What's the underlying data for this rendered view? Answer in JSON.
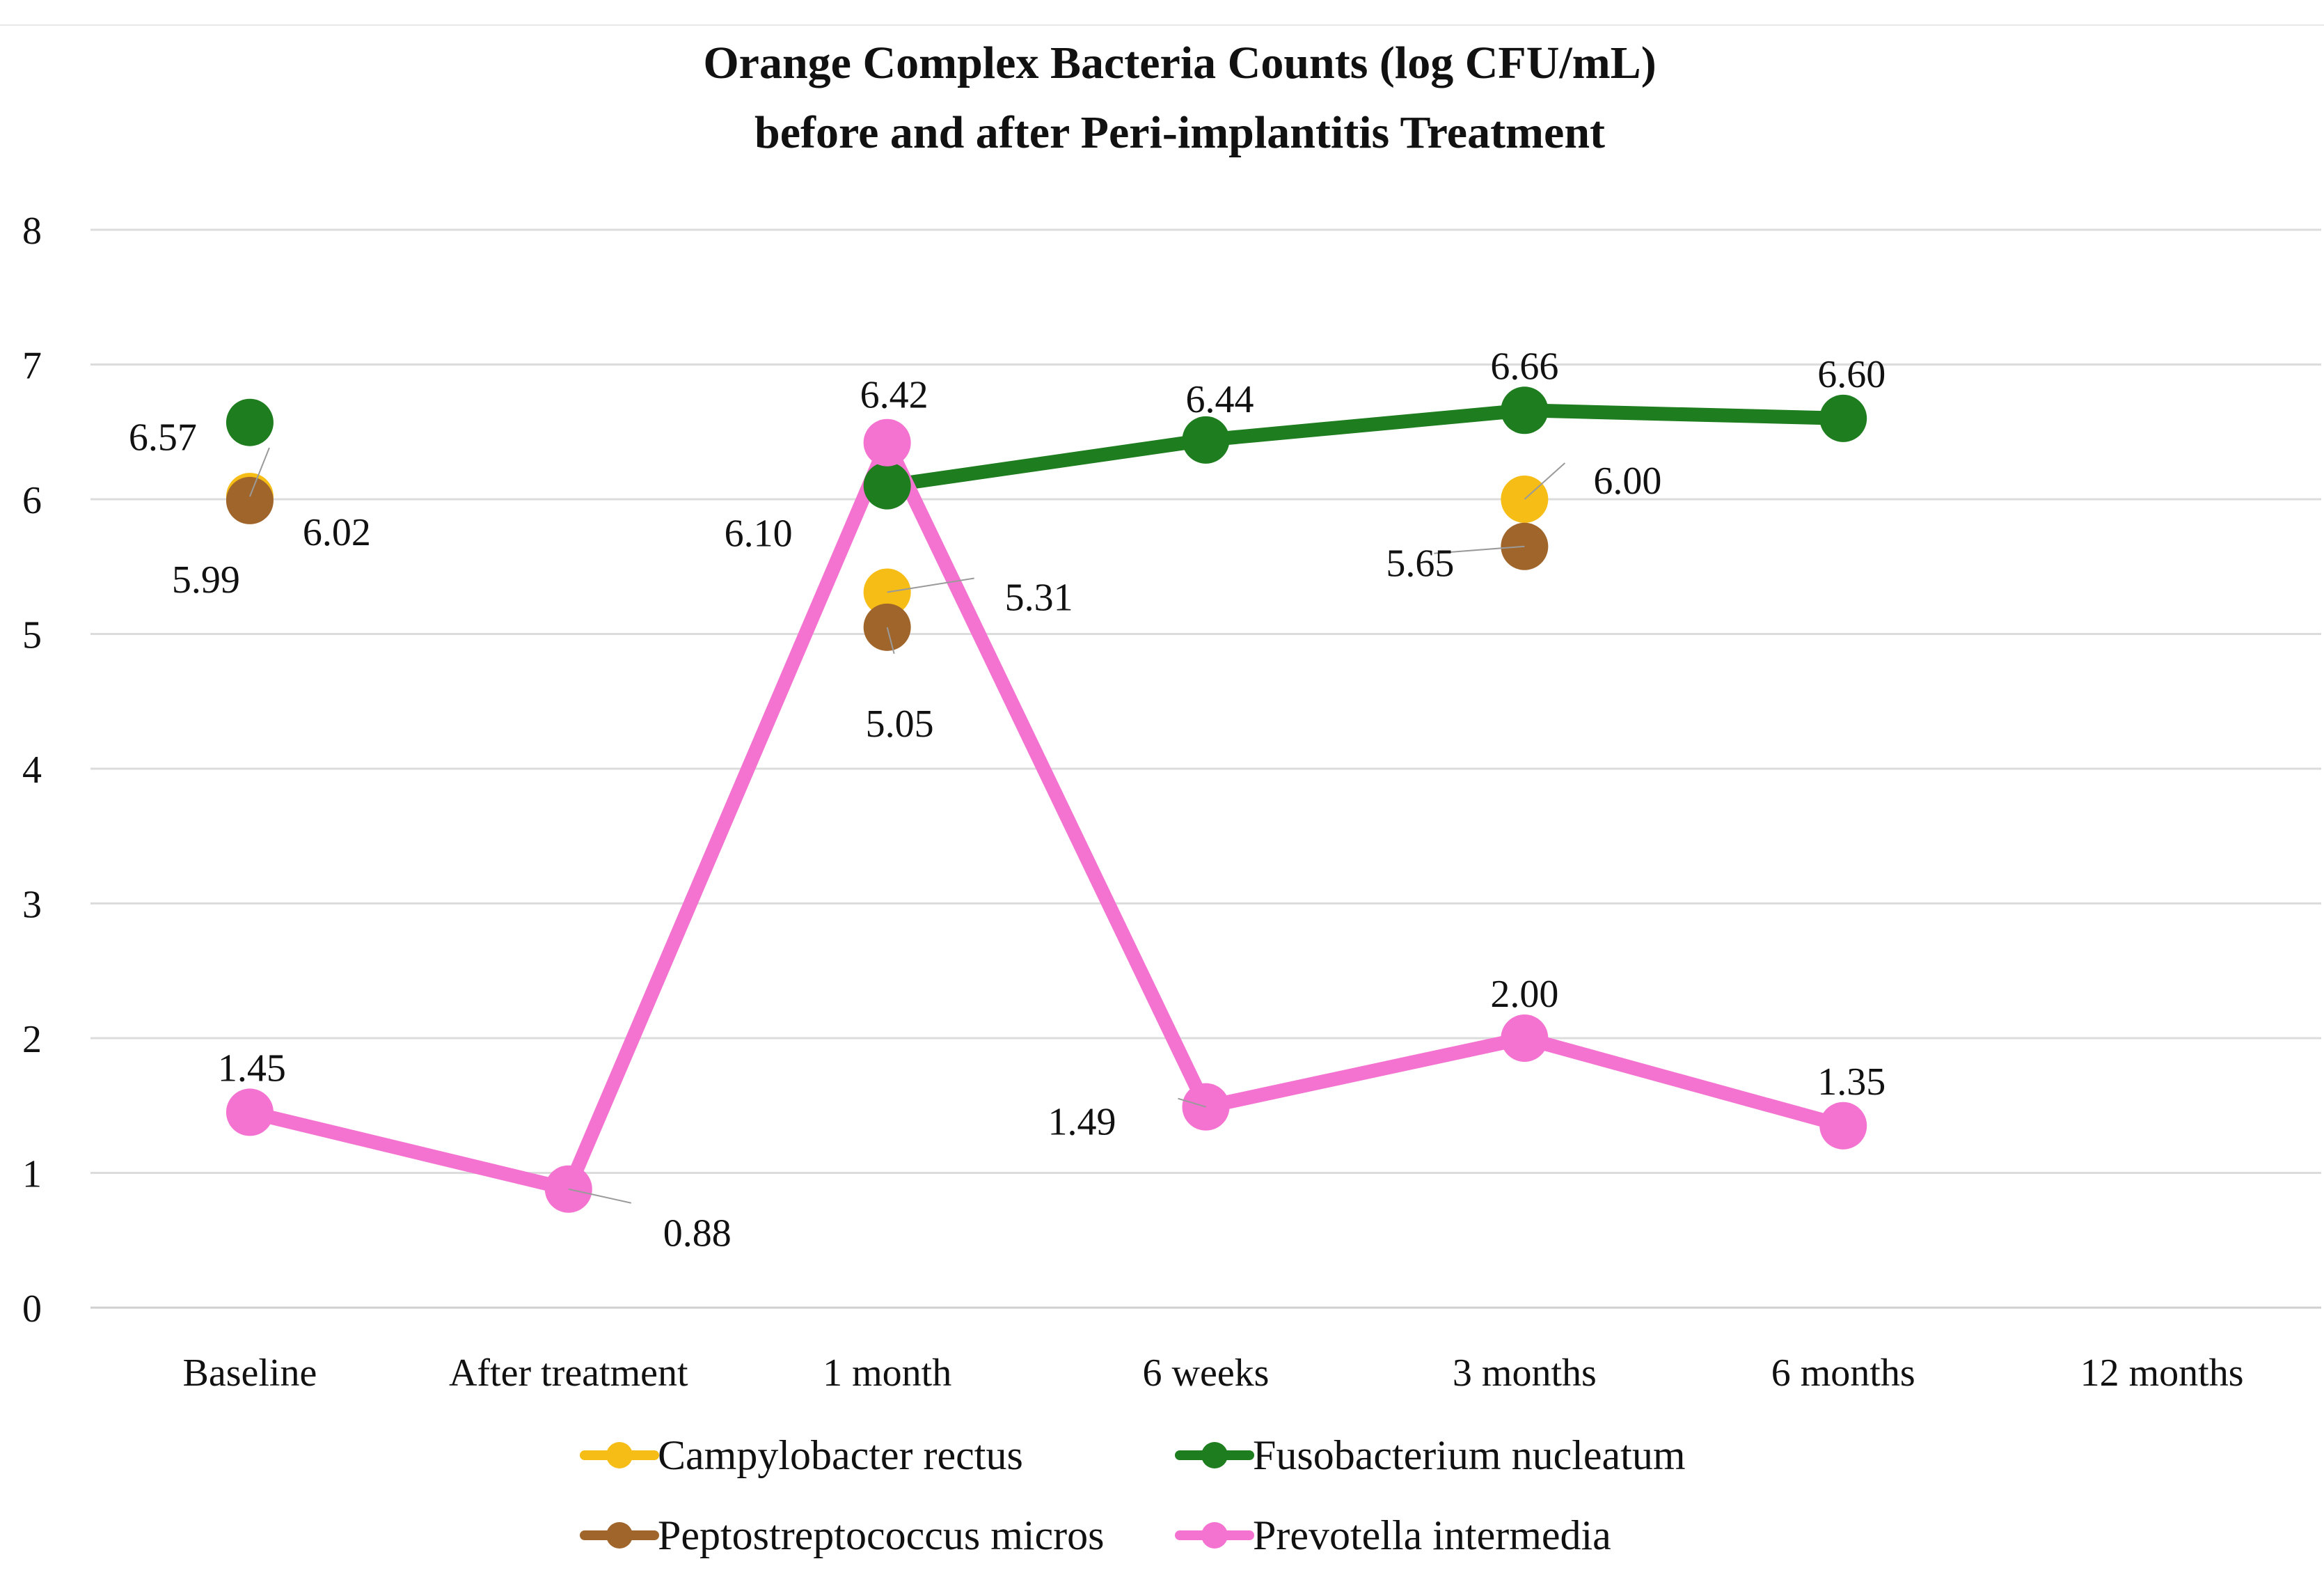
{
  "chart_data": {
    "type": "line",
    "title_lines": [
      "Orange Complex Bacteria Counts (log CFU/mL)",
      "before and after Peri-implantitis Treatment"
    ],
    "xlabel": "",
    "ylabel": "",
    "categories": [
      "Baseline",
      "After treatment",
      "1 month",
      "6 weeks",
      "3 months",
      "6 months",
      "12 months"
    ],
    "ylim": [
      0,
      8
    ],
    "yticks": [
      "0",
      "1",
      "2",
      "3",
      "4",
      "5",
      "6",
      "7",
      "8"
    ],
    "grid": true,
    "legend_position": "bottom",
    "series": [
      {
        "name": "Campylobacter rectus",
        "color": "#F6BD16",
        "values": [
          6.02,
          null,
          5.31,
          null,
          6.0,
          null,
          null
        ],
        "labels": [
          "6.02",
          "",
          "5.31",
          "",
          "6.00",
          "",
          ""
        ]
      },
      {
        "name": "Fusobacterium nucleatum",
        "color": "#1E7D1E",
        "values": [
          6.57,
          null,
          6.1,
          6.44,
          6.66,
          6.6,
          null
        ],
        "labels": [
          "6.57",
          "",
          "6.10",
          "6.44",
          "6.66",
          "6.60",
          ""
        ]
      },
      {
        "name": "Peptostreptococcus micros",
        "color": "#A0652A",
        "values": [
          5.99,
          null,
          5.05,
          null,
          5.65,
          null,
          null
        ],
        "labels": [
          "5.99",
          "",
          "5.05",
          "",
          "5.65",
          "",
          ""
        ]
      },
      {
        "name": "Prevotella intermedia",
        "color": "#F472D0",
        "values": [
          1.45,
          0.88,
          6.42,
          1.49,
          2.0,
          1.35,
          null
        ],
        "labels": [
          "1.45",
          "0.88",
          "6.42",
          "1.49",
          "2.00",
          "1.35",
          ""
        ]
      }
    ]
  }
}
